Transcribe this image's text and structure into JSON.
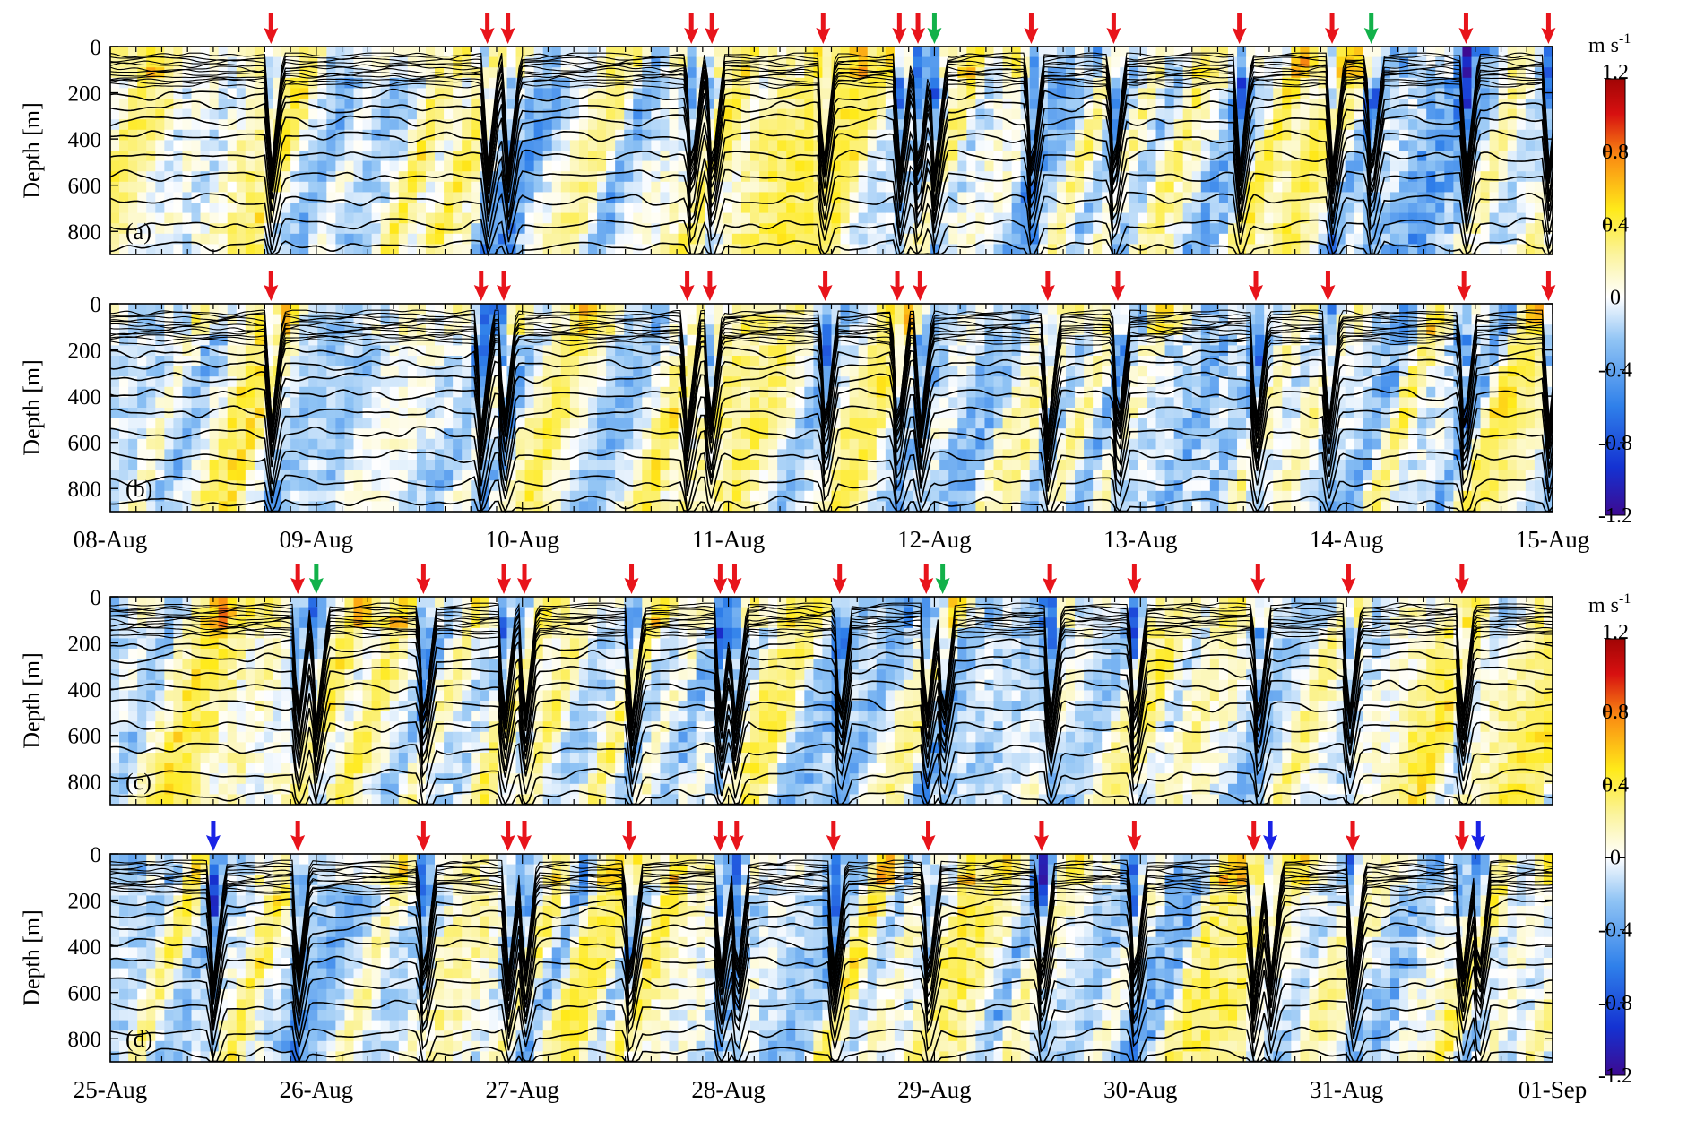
{
  "chart_data": [
    {
      "type": "heatmap",
      "panel_label": "(a)",
      "ylabel": "Depth [m]",
      "y_ticks": [
        0,
        200,
        400,
        600,
        800
      ],
      "ylim": [
        900,
        0
      ],
      "x_tick_labels": [],
      "xlim_days": [
        8,
        15
      ],
      "red_arrows": [
        8.78,
        9.83,
        9.93,
        10.82,
        10.92,
        11.46,
        11.83,
        11.92,
        12.47,
        12.87,
        13.48,
        13.93,
        14.58,
        14.98
      ],
      "green_arrows": [
        12.0,
        14.12
      ],
      "blue_arrows": []
    },
    {
      "type": "heatmap",
      "panel_label": "(b)",
      "ylabel": "Depth [m]",
      "y_ticks": [
        0,
        200,
        400,
        600,
        800
      ],
      "ylim": [
        900,
        0
      ],
      "x_tick_labels": [
        "08-Aug",
        "09-Aug",
        "10-Aug",
        "11-Aug",
        "12-Aug",
        "13-Aug",
        "14-Aug",
        "15-Aug"
      ],
      "xlim_days": [
        8,
        15
      ],
      "red_arrows": [
        8.78,
        9.8,
        9.91,
        10.8,
        10.91,
        11.47,
        11.82,
        11.93,
        12.55,
        12.89,
        13.56,
        13.91,
        14.57,
        14.98
      ],
      "green_arrows": [],
      "blue_arrows": []
    },
    {
      "type": "heatmap",
      "panel_label": "(c)",
      "ylabel": "Depth [m]",
      "y_ticks": [
        0,
        200,
        400,
        600,
        800
      ],
      "ylim": [
        900,
        0
      ],
      "x_tick_labels": [],
      "xlim_days": [
        25,
        32
      ],
      "red_arrows": [
        25.91,
        26.52,
        26.91,
        27.01,
        27.53,
        27.96,
        28.03,
        28.54,
        28.96,
        29.56,
        29.97,
        30.57,
        31.01,
        31.56
      ],
      "green_arrows": [
        26.0,
        29.04
      ],
      "blue_arrows": []
    },
    {
      "type": "heatmap",
      "panel_label": "(d)",
      "ylabel": "Depth [m]",
      "y_ticks": [
        0,
        200,
        400,
        600,
        800
      ],
      "ylim": [
        900,
        0
      ],
      "x_tick_labels": [
        "25-Aug",
        "26-Aug",
        "27-Aug",
        "28-Aug",
        "29-Aug",
        "30-Aug",
        "31-Aug",
        "01-Sep"
      ],
      "xlim_days": [
        25,
        32
      ],
      "red_arrows": [
        25.91,
        26.52,
        26.93,
        27.01,
        27.52,
        27.96,
        28.04,
        28.51,
        28.97,
        29.52,
        29.97,
        30.55,
        31.03,
        31.56
      ],
      "green_arrows": [],
      "blue_arrows": [
        25.5,
        30.63,
        31.64
      ]
    }
  ],
  "colorbars": [
    {
      "unit_main": "m s",
      "unit_exp": "-1",
      "tick_labels": [
        "1.2",
        "0.8",
        "0.4",
        "0",
        "-0.4",
        "-0.8",
        "-1.2"
      ],
      "range": [
        -1.2,
        1.2
      ]
    },
    {
      "unit_main": "m s",
      "unit_exp": "-1",
      "tick_labels": [
        "1.2",
        "0.8",
        "0.4",
        "0",
        "-0.4",
        "-0.8",
        "-1.2"
      ],
      "range": [
        -1.2,
        1.2
      ]
    }
  ],
  "colors": {
    "red_arrow": "#e8141b",
    "green_arrow": "#12b14a",
    "blue_arrow": "#1a23e6",
    "isopycnal": "#000000",
    "colormap": [
      "#3d0a91",
      "#1432d2",
      "#2f80ea",
      "#8fc3f4",
      "#ffffff",
      "#fbf39a",
      "#ffea1a",
      "#fa8d12",
      "#d71010",
      "#a10505"
    ]
  }
}
